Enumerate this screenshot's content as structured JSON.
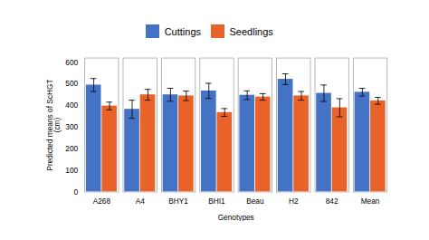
{
  "chart_data": {
    "type": "bar",
    "categories": [
      "A268",
      "A4",
      "BHY1",
      "BHI1",
      "Beau",
      "H2",
      "842",
      "Mean"
    ],
    "series": [
      {
        "name": "Cuttings",
        "color": "#4472C4",
        "values": [
          495,
          383,
          450,
          468,
          448,
          522,
          457,
          462
        ],
        "errors": [
          30,
          42,
          30,
          35,
          20,
          25,
          38,
          18
        ]
      },
      {
        "name": "Seedlings",
        "color": "#E8622A",
        "values": [
          398,
          450,
          445,
          368,
          440,
          445,
          390,
          422
        ],
        "errors": [
          18,
          25,
          22,
          18,
          15,
          20,
          42,
          16
        ]
      }
    ],
    "xlabel": "Genotypes",
    "ylabel": "Predicted means of ScHGT\n(cm)",
    "ylim": [
      0,
      620
    ],
    "yticks": [
      0,
      100,
      200,
      300,
      400,
      500,
      600
    ],
    "grid": false,
    "legend": "top"
  }
}
